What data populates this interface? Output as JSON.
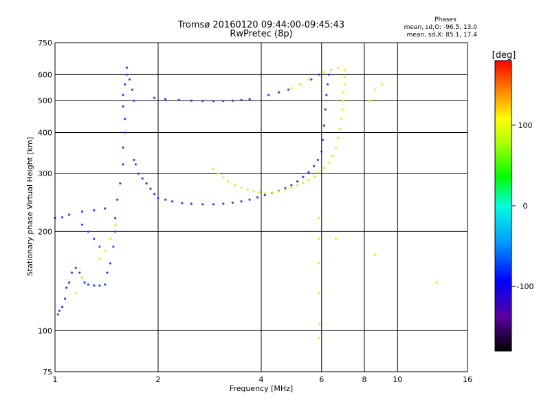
{
  "chart_data": {
    "type": "scatter",
    "title": "Tromsø 20160120 09:44:00-09:45:43",
    "subtitle": "RwPretec (8p)",
    "xlabel": "Frequency [MHz]",
    "ylabel": "Stationary phase Virtual Height [km]",
    "x_scale": "log",
    "y_scale": "log",
    "xlim": [
      1,
      16
    ],
    "ylim": [
      75,
      750
    ],
    "grid": true,
    "x_ticks": [
      1,
      2,
      4,
      6,
      8,
      10,
      16
    ],
    "x_tick_labels": [
      "1",
      "2",
      "4",
      "6",
      "8",
      "10",
      "16"
    ],
    "y_ticks": [
      75,
      100,
      200,
      300,
      400,
      500,
      600,
      750
    ],
    "y_tick_labels": [
      "75",
      "100",
      "200",
      "300",
      "400",
      "500",
      "600",
      "750"
    ],
    "stats": {
      "heading": "Phases",
      "line_o": "mean, sd,O: -96.5, 13.0",
      "line_x": "mean, sd,X:  85.1, 17.4"
    },
    "colorbar": {
      "label": "[deg]",
      "range": [
        -180,
        180
      ],
      "ticks": [
        100,
        0,
        -100
      ],
      "tick_labels": [
        "100",
        "0",
        "-100"
      ]
    },
    "series": [
      {
        "mode": "O",
        "phase_deg": -100,
        "color": "#1e46ff",
        "points": [
          [
            1.02,
            112
          ],
          [
            1.03,
            115
          ],
          [
            1.05,
            118
          ],
          [
            1.07,
            125
          ],
          [
            1.08,
            135
          ],
          [
            1.1,
            140
          ],
          [
            1.12,
            150
          ],
          [
            1.15,
            155
          ],
          [
            1.18,
            150
          ],
          [
            1.2,
            145
          ],
          [
            1.22,
            140
          ],
          [
            1.25,
            138
          ],
          [
            1.3,
            137
          ],
          [
            1.35,
            137
          ],
          [
            1.4,
            138
          ],
          [
            1.42,
            150
          ],
          [
            1.45,
            160
          ],
          [
            1.48,
            180
          ],
          [
            1.5,
            200
          ],
          [
            1.5,
            220
          ],
          [
            1.52,
            250
          ],
          [
            1.55,
            280
          ],
          [
            1.58,
            320
          ],
          [
            1.58,
            360
          ],
          [
            1.6,
            400
          ],
          [
            1.6,
            440
          ],
          [
            1.58,
            480
          ],
          [
            1.58,
            520
          ],
          [
            1.6,
            560
          ],
          [
            1.62,
            600
          ],
          [
            1.62,
            630
          ],
          [
            1.65,
            580
          ],
          [
            1.68,
            540
          ],
          [
            1.7,
            500
          ],
          [
            1.7,
            330
          ],
          [
            1.72,
            320
          ],
          [
            1.75,
            300
          ],
          [
            1.8,
            290
          ],
          [
            1.85,
            280
          ],
          [
            1.9,
            270
          ],
          [
            1.95,
            260
          ],
          [
            2.0,
            253
          ],
          [
            2.1,
            250
          ],
          [
            2.2,
            247
          ],
          [
            2.35,
            244
          ],
          [
            2.5,
            243
          ],
          [
            2.7,
            242
          ],
          [
            2.9,
            242
          ],
          [
            3.1,
            243
          ],
          [
            3.3,
            245
          ],
          [
            3.5,
            247
          ],
          [
            3.7,
            250
          ],
          [
            3.9,
            254
          ],
          [
            4.1,
            258
          ],
          [
            4.3,
            262
          ],
          [
            4.5,
            266
          ],
          [
            4.7,
            271
          ],
          [
            4.9,
            277
          ],
          [
            5.1,
            284
          ],
          [
            5.3,
            293
          ],
          [
            5.5,
            303
          ],
          [
            5.7,
            316
          ],
          [
            5.85,
            330
          ],
          [
            6.0,
            350
          ],
          [
            6.05,
            380
          ],
          [
            6.1,
            420
          ],
          [
            6.15,
            470
          ],
          [
            6.2,
            520
          ],
          [
            6.25,
            560
          ],
          [
            6.3,
            600
          ],
          [
            1.95,
            510
          ],
          [
            2.1,
            505
          ],
          [
            2.3,
            502
          ],
          [
            2.5,
            500
          ],
          [
            2.7,
            499
          ],
          [
            2.9,
            498
          ],
          [
            3.1,
            499
          ],
          [
            3.3,
            500
          ],
          [
            3.5,
            502
          ],
          [
            3.7,
            505
          ],
          [
            4.2,
            520
          ],
          [
            4.5,
            530
          ],
          [
            4.8,
            540
          ],
          [
            5.2,
            560
          ],
          [
            5.6,
            580
          ],
          [
            5.9,
            600
          ],
          [
            1.0,
            220
          ],
          [
            1.05,
            221
          ],
          [
            1.1,
            225
          ],
          [
            1.2,
            230
          ],
          [
            1.3,
            232
          ],
          [
            1.4,
            235
          ],
          [
            1.2,
            210
          ],
          [
            1.25,
            200
          ],
          [
            1.3,
            190
          ],
          [
            1.35,
            180
          ]
        ]
      },
      {
        "mode": "X",
        "phase_deg": 85,
        "color": "#e6ee10",
        "points": [
          [
            2.9,
            310
          ],
          [
            3.0,
            300
          ],
          [
            3.1,
            292
          ],
          [
            3.2,
            284
          ],
          [
            3.35,
            277
          ],
          [
            3.5,
            272
          ],
          [
            3.65,
            268
          ],
          [
            3.8,
            265
          ],
          [
            3.95,
            263
          ],
          [
            4.1,
            262
          ],
          [
            4.3,
            263
          ],
          [
            4.5,
            265
          ],
          [
            4.7,
            268
          ],
          [
            4.9,
            272
          ],
          [
            5.1,
            276
          ],
          [
            5.3,
            281
          ],
          [
            5.5,
            287
          ],
          [
            5.7,
            294
          ],
          [
            5.9,
            302
          ],
          [
            6.1,
            312
          ],
          [
            6.3,
            325
          ],
          [
            6.45,
            340
          ],
          [
            6.6,
            360
          ],
          [
            6.7,
            385
          ],
          [
            6.8,
            410
          ],
          [
            6.85,
            440
          ],
          [
            6.9,
            470
          ],
          [
            6.95,
            500
          ],
          [
            6.95,
            530
          ],
          [
            7.0,
            560
          ],
          [
            7.0,
            590
          ],
          [
            7.0,
            620
          ],
          [
            6.7,
            630
          ],
          [
            6.4,
            620
          ],
          [
            6.1,
            610
          ],
          [
            5.5,
            580
          ],
          [
            5.2,
            560
          ],
          [
            4.9,
            545
          ],
          [
            1.5,
            210
          ],
          [
            1.45,
            190
          ],
          [
            1.4,
            175
          ],
          [
            1.35,
            165
          ],
          [
            1.2,
            145
          ],
          [
            1.15,
            130
          ],
          [
            5.9,
            220
          ],
          [
            5.9,
            190
          ],
          [
            5.88,
            160
          ],
          [
            5.9,
            130
          ],
          [
            5.92,
            105
          ],
          [
            5.9,
            95
          ],
          [
            8.3,
            500
          ],
          [
            8.6,
            540
          ],
          [
            9.0,
            560
          ],
          [
            6.6,
            190
          ],
          [
            8.6,
            170
          ],
          [
            13.0,
            140
          ]
        ]
      }
    ]
  }
}
